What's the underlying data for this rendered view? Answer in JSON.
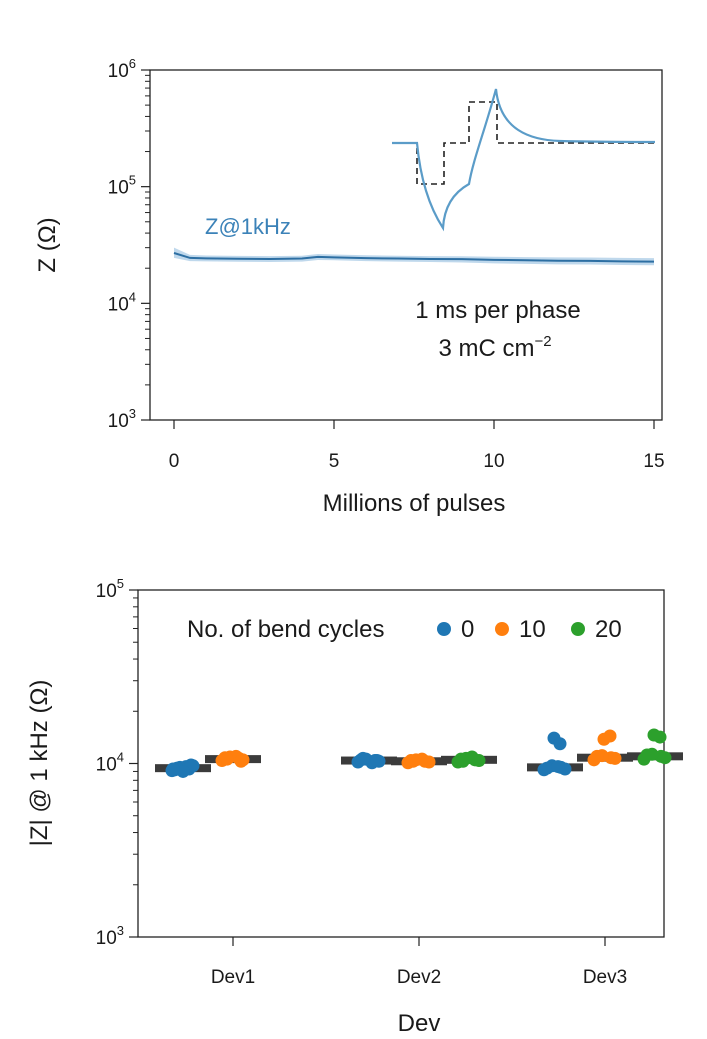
{
  "chart_data": [
    {
      "type": "line",
      "xlabel": "Millions of pulses",
      "ylabel": "Z (Ω)",
      "xlim": [
        0,
        15
      ],
      "ylim_log10": [
        3,
        6
      ],
      "y_scale": "log",
      "x_ticks": [
        "0",
        "5",
        "10",
        "15"
      ],
      "y_ticks": [
        {
          "base": "10",
          "exp": "3"
        },
        {
          "base": "10",
          "exp": "4"
        },
        {
          "base": "10",
          "exp": "5"
        },
        {
          "base": "10",
          "exp": "6"
        }
      ],
      "series": [
        {
          "name": "Z@1kHz",
          "color": "#2d6fa3",
          "band_color": "#a9cbe6",
          "x": [
            0,
            0.5,
            1,
            2,
            3,
            4,
            4.5,
            5,
            6,
            7,
            8,
            9,
            10,
            11,
            12,
            13,
            14,
            15
          ],
          "y": [
            27000,
            24500,
            24300,
            24100,
            24000,
            24200,
            25000,
            24800,
            24400,
            24200,
            24000,
            23900,
            23600,
            23400,
            23200,
            23100,
            22900,
            22800
          ],
          "band_lower": [
            24500,
            23000,
            22900,
            22700,
            22600,
            22800,
            23500,
            23400,
            23000,
            22800,
            22600,
            22400,
            22000,
            21800,
            21600,
            21500,
            21300,
            21200
          ],
          "band_upper": [
            30000,
            26000,
            25700,
            25500,
            25400,
            25600,
            26500,
            26200,
            25800,
            25600,
            25400,
            25300,
            25100,
            24900,
            24800,
            24700,
            24500,
            24400
          ]
        }
      ],
      "annotations": [
        "1 ms per phase",
        "3 mC cm",
        "−2"
      ]
    },
    {
      "type": "scatter",
      "xlabel": "Dev",
      "ylabel": "|Z| @ 1 kHz (Ω)",
      "y_scale": "log",
      "ylim_log10": [
        3,
        5
      ],
      "categories": [
        "Dev1",
        "Dev2",
        "Dev3"
      ],
      "y_ticks": [
        {
          "base": "10",
          "exp": "3"
        },
        {
          "base": "10",
          "exp": "4"
        },
        {
          "base": "10",
          "exp": "5"
        }
      ],
      "legend_title": "No. of bend cycles",
      "legend_placement": "top",
      "series": [
        {
          "name": "0",
          "color": "#1f77b4",
          "groups": [
            {
              "category": "Dev1",
              "median": 9400,
              "values": [
                9100,
                9300,
                9500,
                9700,
                9200,
                9600,
                9400,
                9800,
                9000,
                9300
              ]
            },
            {
              "category": "Dev2",
              "median": 10400,
              "values": [
                10200,
                10400,
                10600,
                10300,
                10500,
                10100,
                10700,
                10400
              ]
            },
            {
              "category": "Dev3",
              "median": 9500,
              "values": [
                9200,
                9500,
                9700,
                9300,
                9400,
                9600,
                14000,
                13000
              ]
            }
          ]
        },
        {
          "name": "10",
          "color": "#ff7f0e",
          "groups": [
            {
              "category": "Dev1",
              "median": 10600,
              "values": [
                10400,
                10700,
                10900,
                10500,
                10800,
                11000,
                10600,
                10300
              ]
            },
            {
              "category": "Dev2",
              "median": 10300,
              "values": [
                10100,
                10300,
                10500,
                10200,
                10400,
                10600,
                10300
              ]
            },
            {
              "category": "Dev3",
              "median": 10800,
              "values": [
                10500,
                10800,
                11100,
                10700,
                11000,
                14400,
                13800
              ]
            }
          ]
        },
        {
          "name": "20",
          "color": "#2ca02c",
          "groups": [
            {
              "category": "Dev2",
              "median": 10500,
              "values": [
                10200,
                10500,
                10700,
                10400,
                10600,
                10900,
                10300
              ]
            },
            {
              "category": "Dev3",
              "median": 11000,
              "values": [
                10600,
                11000,
                11300,
                10800,
                11200,
                14200,
                14600
              ]
            }
          ]
        }
      ]
    }
  ]
}
